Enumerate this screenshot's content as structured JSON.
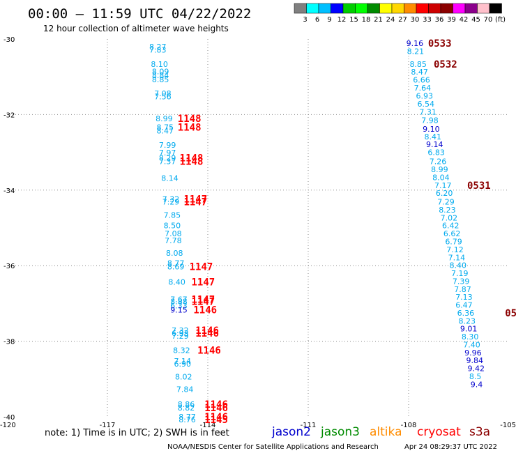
{
  "header": {
    "title": "00:00 – 11:59 UTC 04/22/2022",
    "subtitle": "12 hour collection of altimeter wave heights"
  },
  "colorbar": {
    "colors": [
      "#808080",
      "#00ffff",
      "#00bfff",
      "#0000ff",
      "#00cd00",
      "#00ff00",
      "#008b00",
      "#ffff00",
      "#ffd700",
      "#ff8c00",
      "#ff0000",
      "#cd0000",
      "#8b0000",
      "#ff00ff",
      "#8b008b",
      "#ffc0cb",
      "#000000"
    ],
    "labels": [
      "3",
      "6",
      "9",
      "12",
      "15",
      "18",
      "21",
      "24",
      "27",
      "30",
      "33",
      "36",
      "39",
      "42",
      "45",
      "70",
      "(ft)"
    ]
  },
  "footer": {
    "note": "note: 1) Time is in UTC; 2) SWH is in feet",
    "credit": "NOAA/NESDIS Center for Satellite Applications and Research",
    "timestamp": "Apr 24 08:29:37 UTC 2022"
  },
  "legend": [
    {
      "name": "jason2",
      "color": "#0000cd"
    },
    {
      "name": "jason3",
      "color": "#008b00"
    },
    {
      "name": "altika",
      "color": "#ff8c00"
    },
    {
      "name": "cryosat",
      "color": "#ff0000"
    },
    {
      "name": "s3a",
      "color": "#8b0000"
    }
  ],
  "chart_data": {
    "type": "scatter",
    "title": "12 hour collection of altimeter wave heights",
    "xlim": [
      -120,
      -105
    ],
    "ylim": [
      -40,
      -30
    ],
    "x_ticks": [
      {
        "value": -120,
        "label": "-120"
      },
      {
        "value": -117,
        "label": "-117"
      },
      {
        "value": -114,
        "label": "-114"
      },
      {
        "value": -111,
        "label": "-111"
      },
      {
        "value": -108,
        "label": "-108"
      },
      {
        "value": -105,
        "label": "-105"
      }
    ],
    "y_ticks": [
      {
        "value": -30,
        "label": "-30"
      },
      {
        "value": -32,
        "label": "-32"
      },
      {
        "value": -34,
        "label": "-34"
      },
      {
        "value": -36,
        "label": "-36"
      },
      {
        "value": -38,
        "label": "-38"
      },
      {
        "value": -40,
        "label": "-40"
      }
    ],
    "grid": "dotted",
    "units": "ft",
    "points": [
      {
        "lon": -115.75,
        "lat": -30.2,
        "label": "8.27",
        "color": "#00aaee"
      },
      {
        "lon": -115.75,
        "lat": -30.29,
        "label": "7.83",
        "color": "#00aaee"
      },
      {
        "lon": -115.7,
        "lat": -30.66,
        "label": "8.10",
        "color": "#00aaee"
      },
      {
        "lon": -115.67,
        "lat": -30.86,
        "label": "8.09",
        "color": "#00aaee"
      },
      {
        "lon": -115.67,
        "lat": -30.96,
        "label": "8.84",
        "color": "#00aaee"
      },
      {
        "lon": -115.67,
        "lat": -31.07,
        "label": "8.85",
        "color": "#00aaee"
      },
      {
        "lon": -115.6,
        "lat": -31.44,
        "label": "7.08",
        "color": "#00aaee"
      },
      {
        "lon": -115.6,
        "lat": -31.52,
        "label": "7.56",
        "color": "#00aaee"
      },
      {
        "lon": -115.56,
        "lat": -32.1,
        "label": "8.99",
        "color": "#00aaee"
      },
      {
        "lon": -115.53,
        "lat": -32.33,
        "label": "8.75",
        "color": "#00aaee"
      },
      {
        "lon": -115.53,
        "lat": -32.43,
        "label": "8.47",
        "color": "#00aaee"
      },
      {
        "lon": -115.46,
        "lat": -32.8,
        "label": "7.99",
        "color": "#00aaee"
      },
      {
        "lon": -115.46,
        "lat": -33.01,
        "label": "7.97",
        "color": "#00aaee"
      },
      {
        "lon": -115.46,
        "lat": -33.15,
        "label": "8.29",
        "color": "#00aaee"
      },
      {
        "lon": -115.46,
        "lat": -33.24,
        "label": "7.37",
        "color": "#00aaee"
      },
      {
        "lon": -115.39,
        "lat": -33.68,
        "label": "8.14",
        "color": "#00aaee"
      },
      {
        "lon": -115.36,
        "lat": -34.23,
        "label": "7.32",
        "color": "#00aaee"
      },
      {
        "lon": -115.36,
        "lat": -34.31,
        "label": "7.29",
        "color": "#00aaee"
      },
      {
        "lon": -115.32,
        "lat": -34.66,
        "label": "7.85",
        "color": "#00aaee"
      },
      {
        "lon": -115.32,
        "lat": -34.94,
        "label": "8.50",
        "color": "#00aaee"
      },
      {
        "lon": -115.29,
        "lat": -35.15,
        "label": "7.08",
        "color": "#00aaee"
      },
      {
        "lon": -115.29,
        "lat": -35.33,
        "label": "7.78",
        "color": "#00aaee"
      },
      {
        "lon": -115.25,
        "lat": -35.66,
        "label": "8.08",
        "color": "#00aaee"
      },
      {
        "lon": -115.21,
        "lat": -35.93,
        "label": "8.77",
        "color": "#00aaee"
      },
      {
        "lon": -115.21,
        "lat": -36.02,
        "label": "8.69",
        "color": "#00aaee"
      },
      {
        "lon": -115.18,
        "lat": -36.43,
        "label": "8.40",
        "color": "#00aaee"
      },
      {
        "lon": -115.12,
        "lat": -36.89,
        "label": "7.67",
        "color": "#00aaee"
      },
      {
        "lon": -115.12,
        "lat": -36.95,
        "label": "8.88",
        "color": "#00aaee"
      },
      {
        "lon": -115.12,
        "lat": -37.06,
        "label": "6.33",
        "color": "#00aaee"
      },
      {
        "lon": -115.12,
        "lat": -37.17,
        "label": "9.15",
        "color": "#0000cd"
      },
      {
        "lon": -115.08,
        "lat": -37.71,
        "label": "7.32",
        "color": "#00aaee"
      },
      {
        "lon": -115.08,
        "lat": -37.79,
        "label": "6.93",
        "color": "#00aaee"
      },
      {
        "lon": -115.08,
        "lat": -37.86,
        "label": "7.29",
        "color": "#00aaee"
      },
      {
        "lon": -115.04,
        "lat": -38.24,
        "label": "8.32",
        "color": "#00aaee"
      },
      {
        "lon": -115.01,
        "lat": -38.52,
        "label": "7.14",
        "color": "#00aaee"
      },
      {
        "lon": -115.01,
        "lat": -38.6,
        "label": "6.90",
        "color": "#00aaee"
      },
      {
        "lon": -114.98,
        "lat": -38.94,
        "label": "8.02",
        "color": "#00aaee"
      },
      {
        "lon": -114.94,
        "lat": -39.27,
        "label": "7.84",
        "color": "#00aaee"
      },
      {
        "lon": -114.9,
        "lat": -39.67,
        "label": "8.86",
        "color": "#00aaee"
      },
      {
        "lon": -114.9,
        "lat": -39.76,
        "label": "8.82",
        "color": "#00aaee"
      },
      {
        "lon": -114.87,
        "lat": -40.0,
        "label": "8.77",
        "color": "#00aaee"
      },
      {
        "lon": -114.87,
        "lat": -40.07,
        "label": "8.76",
        "color": "#00aaee"
      },
      {
        "lon": -108.07,
        "lat": -30.11,
        "label": "9.16",
        "color": "#0000cd"
      },
      {
        "lon": -108.05,
        "lat": -30.32,
        "label": "8.21",
        "color": "#00aaee"
      },
      {
        "lon": -107.97,
        "lat": -30.66,
        "label": "8.85",
        "color": "#00aaee"
      },
      {
        "lon": -107.93,
        "lat": -30.87,
        "label": "8.47",
        "color": "#00aaee"
      },
      {
        "lon": -107.87,
        "lat": -31.08,
        "label": "6.66",
        "color": "#00aaee"
      },
      {
        "lon": -107.84,
        "lat": -31.29,
        "label": "7.64",
        "color": "#00aaee"
      },
      {
        "lon": -107.78,
        "lat": -31.5,
        "label": "6.93",
        "color": "#00aaee"
      },
      {
        "lon": -107.74,
        "lat": -31.72,
        "label": "6.54",
        "color": "#00aaee"
      },
      {
        "lon": -107.68,
        "lat": -31.93,
        "label": "7.31",
        "color": "#00aaee"
      },
      {
        "lon": -107.62,
        "lat": -32.15,
        "label": "7.98",
        "color": "#00aaee"
      },
      {
        "lon": -107.58,
        "lat": -32.38,
        "label": "9.10",
        "color": "#0000cd"
      },
      {
        "lon": -107.53,
        "lat": -32.58,
        "label": "8.41",
        "color": "#00aaee"
      },
      {
        "lon": -107.48,
        "lat": -32.79,
        "label": "9.14",
        "color": "#0000cd"
      },
      {
        "lon": -107.43,
        "lat": -33.0,
        "label": "6.83",
        "color": "#00aaee"
      },
      {
        "lon": -107.38,
        "lat": -33.24,
        "label": "7.26",
        "color": "#00aaee"
      },
      {
        "lon": -107.33,
        "lat": -33.45,
        "label": "8.99",
        "color": "#00aaee"
      },
      {
        "lon": -107.29,
        "lat": -33.66,
        "label": "8.04",
        "color": "#00aaee"
      },
      {
        "lon": -107.23,
        "lat": -33.87,
        "label": "7.17",
        "color": "#00aaee"
      },
      {
        "lon": -107.19,
        "lat": -34.08,
        "label": "6.20",
        "color": "#00aaee"
      },
      {
        "lon": -107.14,
        "lat": -34.31,
        "label": "7.29",
        "color": "#00aaee"
      },
      {
        "lon": -107.1,
        "lat": -34.52,
        "label": "8.23",
        "color": "#00aaee"
      },
      {
        "lon": -107.05,
        "lat": -34.73,
        "label": "7.02",
        "color": "#00aaee"
      },
      {
        "lon": -107.0,
        "lat": -34.94,
        "label": "6.42",
        "color": "#00aaee"
      },
      {
        "lon": -106.96,
        "lat": -35.15,
        "label": "6.62",
        "color": "#00aaee"
      },
      {
        "lon": -106.91,
        "lat": -35.36,
        "label": "6.79",
        "color": "#00aaee"
      },
      {
        "lon": -106.87,
        "lat": -35.57,
        "label": "7.12",
        "color": "#00aaee"
      },
      {
        "lon": -106.82,
        "lat": -35.78,
        "label": "7.14",
        "color": "#00aaee"
      },
      {
        "lon": -106.78,
        "lat": -35.99,
        "label": "8.40",
        "color": "#00aaee"
      },
      {
        "lon": -106.73,
        "lat": -36.2,
        "label": "7.19",
        "color": "#00aaee"
      },
      {
        "lon": -106.69,
        "lat": -36.41,
        "label": "7.39",
        "color": "#00aaee"
      },
      {
        "lon": -106.64,
        "lat": -36.62,
        "label": "7.87",
        "color": "#00aaee"
      },
      {
        "lon": -106.6,
        "lat": -36.83,
        "label": "7.13",
        "color": "#00aaee"
      },
      {
        "lon": -106.6,
        "lat": -37.04,
        "label": "6.47",
        "color": "#00aaee"
      },
      {
        "lon": -106.55,
        "lat": -37.25,
        "label": "6.36",
        "color": "#00aaee"
      },
      {
        "lon": -106.51,
        "lat": -37.46,
        "label": "8.23",
        "color": "#00aaee"
      },
      {
        "lon": -106.46,
        "lat": -37.67,
        "label": "9.01",
        "color": "#0000cd"
      },
      {
        "lon": -106.42,
        "lat": -37.88,
        "label": "8.30",
        "color": "#00aaee"
      },
      {
        "lon": -106.37,
        "lat": -38.09,
        "label": "7.40",
        "color": "#00aaee"
      },
      {
        "lon": -106.33,
        "lat": -38.3,
        "label": "9.96",
        "color": "#0000cd"
      },
      {
        "lon": -106.28,
        "lat": -38.51,
        "label": "9.84",
        "color": "#0000cd"
      },
      {
        "lon": -106.24,
        "lat": -38.72,
        "label": "9.42",
        "color": "#0000cd"
      },
      {
        "lon": -106.19,
        "lat": -38.93,
        "label": "8.5",
        "color": "#00aaee"
      },
      {
        "lon": -106.15,
        "lat": -39.14,
        "label": "9.4",
        "color": "#0000cd"
      }
    ],
    "pass_labels": [
      {
        "lon": -114.9,
        "lat": -32.1,
        "label": "1148",
        "color": "#ff0000"
      },
      {
        "lon": -114.9,
        "lat": -32.33,
        "label": "1148",
        "color": "#ff0000"
      },
      {
        "lon": -114.84,
        "lat": -33.15,
        "label": "1148",
        "color": "#ff0000"
      },
      {
        "lon": -114.84,
        "lat": -33.24,
        "label": "1148",
        "color": "#ff0000"
      },
      {
        "lon": -114.72,
        "lat": -34.23,
        "label": "1147",
        "color": "#ff0000"
      },
      {
        "lon": -114.72,
        "lat": -34.31,
        "label": "1147",
        "color": "#ff0000"
      },
      {
        "lon": -114.55,
        "lat": -36.02,
        "label": "1147",
        "color": "#ff0000"
      },
      {
        "lon": -114.49,
        "lat": -36.43,
        "label": "1147",
        "color": "#ff0000"
      },
      {
        "lon": -114.49,
        "lat": -36.89,
        "label": "1147",
        "color": "#ff0000"
      },
      {
        "lon": -114.49,
        "lat": -36.95,
        "label": "1147",
        "color": "#ff0000"
      },
      {
        "lon": -114.43,
        "lat": -37.17,
        "label": "1146",
        "color": "#ff0000"
      },
      {
        "lon": -114.37,
        "lat": -37.71,
        "label": "1146",
        "color": "#ff0000"
      },
      {
        "lon": -114.37,
        "lat": -37.79,
        "label": "1146",
        "color": "#ff0000"
      },
      {
        "lon": -114.31,
        "lat": -38.24,
        "label": "1146",
        "color": "#ff0000"
      },
      {
        "lon": -114.1,
        "lat": -39.67,
        "label": "1146",
        "color": "#ff0000"
      },
      {
        "lon": -114.1,
        "lat": -39.76,
        "label": "1146",
        "color": "#ff0000"
      },
      {
        "lon": -114.1,
        "lat": -40.0,
        "label": "1146",
        "color": "#ff0000"
      },
      {
        "lon": -114.1,
        "lat": -40.07,
        "label": "1145",
        "color": "#ff0000"
      },
      {
        "lon": -107.42,
        "lat": -30.11,
        "label": "0533",
        "color": "#8b0000"
      },
      {
        "lon": -107.25,
        "lat": -30.66,
        "label": "0532",
        "color": "#8b0000"
      },
      {
        "lon": -106.25,
        "lat": -33.87,
        "label": "0531",
        "color": "#8b0000"
      },
      {
        "lon": -105.12,
        "lat": -37.25,
        "label": "05",
        "color": "#8b0000"
      }
    ]
  }
}
